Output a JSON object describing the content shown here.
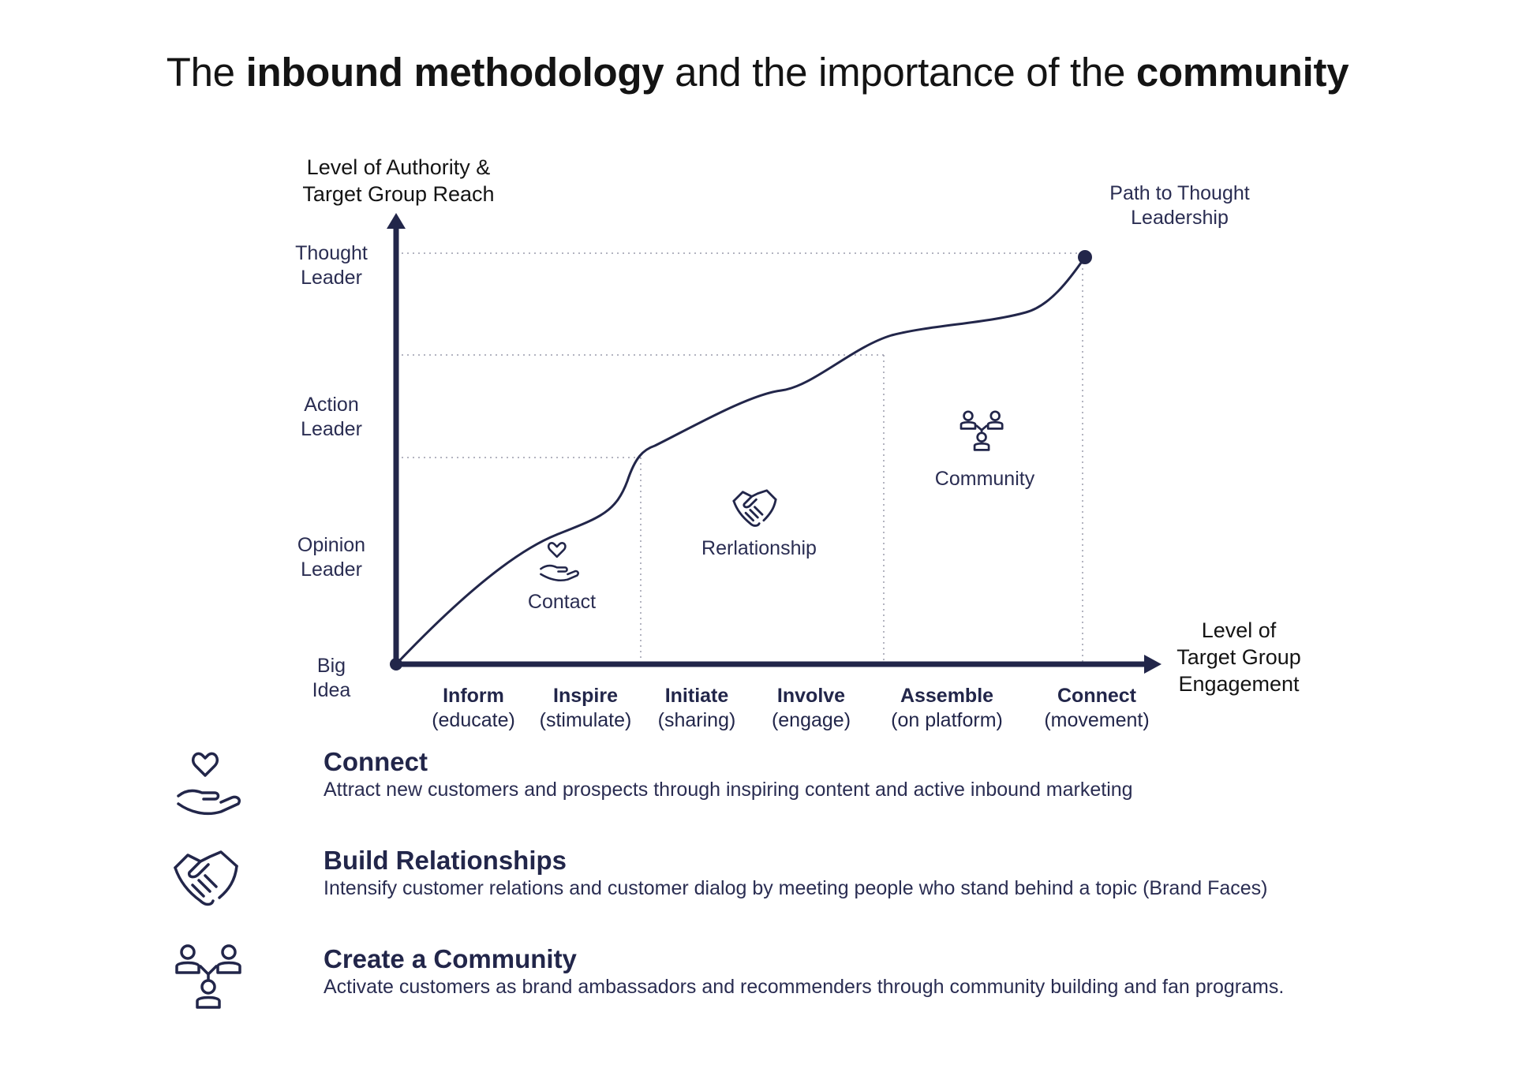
{
  "title": {
    "part1": "The ",
    "bold1": "inbound methodology",
    "part2": " and the importance of the ",
    "bold2": "community"
  },
  "diagram": {
    "y_axis_title": [
      "Level of Authority &",
      "Target Group Reach"
    ],
    "x_axis_title": [
      "Level of",
      "Target Group",
      "Engagement"
    ],
    "y_levels": [
      {
        "line1": "Thought",
        "line2": "Leader"
      },
      {
        "line1": "Action",
        "line2": "Leader"
      },
      {
        "line1": "Opinion",
        "line2": "Leader"
      },
      {
        "line1": "Big",
        "line2": "Idea"
      }
    ],
    "stages": [
      {
        "name": "Inform",
        "desc": "(educate)"
      },
      {
        "name": "Inspire",
        "desc": "(stimulate)"
      },
      {
        "name": "Initiate",
        "desc": "(sharing)"
      },
      {
        "name": "Involve",
        "desc": "(engage)"
      },
      {
        "name": "Assemble",
        "desc": "(on platform)"
      },
      {
        "name": "Connect",
        "desc": "(movement)"
      }
    ],
    "zones": {
      "contact": "Contact",
      "relationship": "Rerlationship",
      "community": "Community"
    },
    "path_label": [
      "Path to Thought",
      "Leadership"
    ],
    "color": "#22264a"
  },
  "legend": [
    {
      "icon": "heart-hand-icon",
      "title": "Connect",
      "desc": "Attract new customers and prospects through inspiring content and active inbound marketing"
    },
    {
      "icon": "handshake-icon",
      "title": "Build Relationships",
      "desc": "Intensify customer relations and customer dialog by meeting people who stand behind a topic (Brand Faces)"
    },
    {
      "icon": "community-icon",
      "title": "Create a Community",
      "desc": "Activate customers as brand ambassadors and recommenders through community building and fan programs."
    }
  ]
}
